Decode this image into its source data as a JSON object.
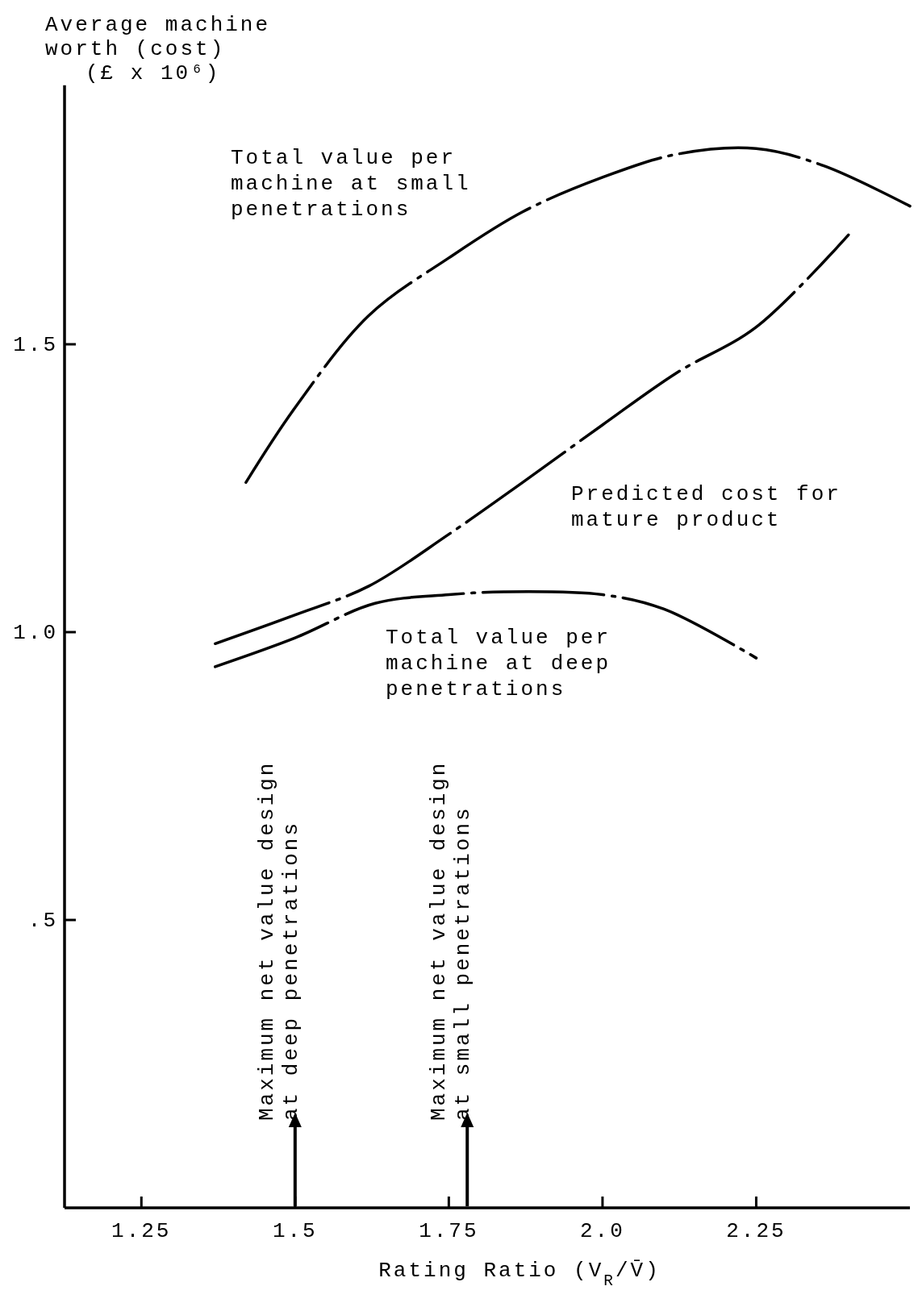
{
  "chart_data": {
    "type": "line",
    "xlabel": "Rating Ratio (V$_{R}$/V̄)",
    "ylabel": "Average machine worth (cost) (£ x 10⁶)",
    "xlim": [
      1.125,
      2.5
    ],
    "ylim": [
      0,
      1.95
    ],
    "xticks": [
      1.25,
      1.5,
      1.75,
      {
        "value": 2,
        "label": "2.0"
      },
      2.25
    ],
    "yticks": [
      {
        "value": 0.5,
        "label": ".5"
      },
      {
        "value": 1,
        "label": "1.0"
      },
      1.5
    ],
    "grid": false,
    "line_style": "dashed",
    "marker": "none",
    "series": [
      {
        "name": "Total value per machine at small penetrations",
        "color": "#000000",
        "x": [
          1.42,
          1.5,
          1.62,
          1.75,
          1.87,
          2.0,
          2.12,
          2.25,
          2.36,
          2.5
        ],
        "values": [
          1.26,
          1.39,
          1.55,
          1.65,
          1.73,
          1.79,
          1.83,
          1.84,
          1.81,
          1.74
        ]
      },
      {
        "name": "Predicted cost for mature product",
        "color": "#000000",
        "x": [
          1.37,
          1.5,
          1.62,
          1.75,
          1.87,
          2.0,
          2.12,
          2.25,
          2.4
        ],
        "values": [
          0.98,
          1.03,
          1.08,
          1.17,
          1.26,
          1.36,
          1.45,
          1.53,
          1.69
        ]
      },
      {
        "name": "Total value per machine at deep penetrations",
        "color": "#000000",
        "x": [
          1.37,
          1.5,
          1.63,
          1.75,
          1.84,
          2.0,
          2.1,
          2.25
        ],
        "values": [
          0.94,
          0.99,
          1.05,
          1.065,
          1.07,
          1.065,
          1.04,
          0.955
        ]
      }
    ],
    "ref_lines": [
      {
        "axis": "x",
        "value": 1.5,
        "label": "Maximum net value  design at deep penetrations"
      },
      {
        "axis": "x",
        "value": 1.78,
        "label": "Maximum net value  design at small penetrations"
      }
    ]
  }
}
